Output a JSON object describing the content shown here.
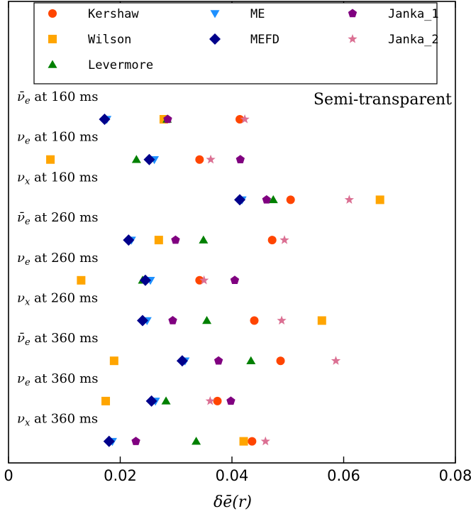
{
  "chart_data": {
    "type": "scatter",
    "xlabel": "δē(r)",
    "annotation": "Semi-transparent",
    "xlim": [
      0,
      0.08
    ],
    "xticks": [
      {
        "value": 0,
        "label": "0"
      },
      {
        "value": 0.02,
        "label": "0.02"
      },
      {
        "value": 0.04,
        "label": "0.04"
      },
      {
        "value": 0.06,
        "label": "0.06"
      },
      {
        "value": 0.08,
        "label": "0.08"
      }
    ],
    "rows": [
      {
        "flavor": "ν̄",
        "sub": "e",
        "suffix": " at 160 ms"
      },
      {
        "flavor": "ν",
        "sub": "e",
        "suffix": " at 160 ms"
      },
      {
        "flavor": "ν",
        "sub": "x",
        "suffix": " at 160 ms"
      },
      {
        "flavor": "ν̄",
        "sub": "e",
        "suffix": " at 260 ms"
      },
      {
        "flavor": "ν",
        "sub": "e",
        "suffix": " at 260 ms"
      },
      {
        "flavor": "ν",
        "sub": "x",
        "suffix": " at 260 ms"
      },
      {
        "flavor": "ν̄",
        "sub": "e",
        "suffix": " at 360 ms"
      },
      {
        "flavor": "ν",
        "sub": "e",
        "suffix": " at 360 ms"
      },
      {
        "flavor": "ν",
        "sub": "x",
        "suffix": " at 360 ms"
      }
    ],
    "series": [
      {
        "name": "Kershaw",
        "marker": "circle",
        "color": "#ff4500",
        "values": [
          0.0414,
          0.0342,
          0.0505,
          0.0472,
          0.0342,
          0.044,
          0.0487,
          0.0374,
          0.0436
        ]
      },
      {
        "name": "Wilson",
        "marker": "square",
        "color": "#ffa500",
        "values": [
          0.0278,
          0.0075,
          0.0665,
          0.0269,
          0.013,
          0.0561,
          0.0189,
          0.0174,
          0.0421
        ]
      },
      {
        "name": "Levermore",
        "marker": "triangle-up",
        "color": "#008000",
        "values": [
          0.0284,
          0.0229,
          0.0474,
          0.0349,
          0.024,
          0.0355,
          0.0434,
          0.0282,
          0.0336
        ]
      },
      {
        "name": "ME",
        "marker": "triangle-down",
        "color": "#1e90ff",
        "values": [
          0.0176,
          0.0261,
          0.0418,
          0.022,
          0.0254,
          0.0248,
          0.0316,
          0.0263,
          0.0186
        ]
      },
      {
        "name": "MEFD",
        "marker": "diamond",
        "color": "#00008b",
        "values": [
          0.0172,
          0.0252,
          0.0414,
          0.0215,
          0.0245,
          0.024,
          0.0311,
          0.0256,
          0.018
        ]
      },
      {
        "name": "Janka_1",
        "marker": "pentagon",
        "color": "#800080",
        "values": [
          0.0285,
          0.0415,
          0.0462,
          0.0299,
          0.0405,
          0.0294,
          0.0376,
          0.0398,
          0.0228
        ]
      },
      {
        "name": "Janka_2",
        "marker": "star",
        "color": "#db7093",
        "values": [
          0.0423,
          0.0362,
          0.061,
          0.0494,
          0.035,
          0.0489,
          0.0586,
          0.0361,
          0.046
        ]
      }
    ]
  }
}
